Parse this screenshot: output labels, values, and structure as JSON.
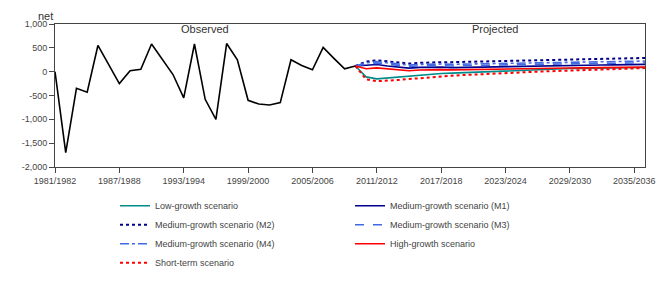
{
  "chart_data": {
    "type": "line",
    "ylabel": "net",
    "xlim": [
      1981,
      2036
    ],
    "ylim": [
      -2000,
      1000
    ],
    "xticks": [
      {
        "value": 1981,
        "label": "1981/1982"
      },
      {
        "value": 1987,
        "label": "1987/1988"
      },
      {
        "value": 1993,
        "label": "1993/1994"
      },
      {
        "value": 1999,
        "label": "1999/2000"
      },
      {
        "value": 2005,
        "label": "2005/2006"
      },
      {
        "value": 2011,
        "label": "2011/2012"
      },
      {
        "value": 2017,
        "label": "2017/2018"
      },
      {
        "value": 2023,
        "label": "2023/2024"
      },
      {
        "value": 2029,
        "label": "2029/2030"
      },
      {
        "value": 2035,
        "label": "2035/2036"
      }
    ],
    "yticks": [
      {
        "value": -2000,
        "label": "-2,000"
      },
      {
        "value": -1500,
        "label": "-1,500"
      },
      {
        "value": -1000,
        "label": "-1,000"
      },
      -500,
      0,
      500,
      {
        "value": 1000,
        "label": "1,000"
      }
    ],
    "grid": false,
    "legend": "bottom",
    "annotations": [
      {
        "text": "Observed",
        "x": 1995,
        "y": 720
      },
      {
        "text": "Projected",
        "x": 2022,
        "y": 720
      }
    ],
    "series": [
      {
        "color": "#000000",
        "line_style": "solid",
        "x": [
          1981,
          1982,
          1983,
          1984,
          1985,
          1986,
          1987,
          1988,
          1989,
          1990,
          1991,
          1992,
          1993,
          1994,
          1995,
          1996,
          1997,
          1998,
          1999,
          2000,
          2001,
          2002,
          2003,
          2004,
          2005,
          2006,
          2007,
          2008,
          2009
        ],
        "values": [
          0,
          -1700,
          -350,
          -430,
          550,
          160,
          -250,
          20,
          50,
          580,
          250,
          -60,
          -550,
          580,
          -580,
          -1000,
          590,
          250,
          -600,
          -680,
          -700,
          -650,
          250,
          130,
          40,
          510,
          280,
          60,
          120
        ]
      },
      {
        "name": "Low-growth scenario",
        "color": "#008B8B",
        "line_style": "solid",
        "x": [
          2009,
          2010,
          2011,
          2012,
          2013,
          2014,
          2015,
          2016,
          2017,
          2018,
          2019,
          2020,
          2021,
          2022,
          2023,
          2024,
          2025,
          2026,
          2027,
          2028,
          2029,
          2030,
          2031,
          2032,
          2033,
          2034,
          2035,
          2036
        ],
        "values": [
          120,
          -110,
          -150,
          -130,
          -110,
          -90,
          -70,
          -55,
          -40,
          -30,
          -20,
          -10,
          0,
          10,
          20,
          30,
          40,
          50,
          55,
          60,
          65,
          70,
          75,
          78,
          80,
          82,
          85,
          88
        ]
      },
      {
        "name": "Medium-growth scenario (M1)",
        "color": "#00008B",
        "line_style": "solid",
        "x": [
          2009,
          2010,
          2011,
          2012,
          2013,
          2014,
          2015,
          2016,
          2017,
          2018,
          2019,
          2020,
          2021,
          2022,
          2023,
          2024,
          2025,
          2026,
          2027,
          2028,
          2029,
          2030,
          2031,
          2032,
          2033,
          2034,
          2035,
          2036
        ],
        "values": [
          120,
          130,
          150,
          120,
          95,
          75,
          90,
          100,
          95,
          85,
          90,
          95,
          100,
          105,
          108,
          110,
          115,
          118,
          122,
          125,
          128,
          132,
          136,
          140,
          143,
          146,
          150,
          153
        ]
      },
      {
        "name": "Medium-growth scenario (M2)",
        "color": "#00008B",
        "line_style": "dotted",
        "x": [
          2009,
          2010,
          2011,
          2012,
          2013,
          2014,
          2015,
          2016,
          2017,
          2018,
          2019,
          2020,
          2021,
          2022,
          2023,
          2024,
          2025,
          2026,
          2027,
          2028,
          2029,
          2030,
          2031,
          2032,
          2033,
          2034,
          2035,
          2036
        ],
        "values": [
          120,
          210,
          240,
          215,
          190,
          170,
          185,
          200,
          200,
          200,
          205,
          212,
          218,
          225,
          230,
          235,
          240,
          245,
          250,
          255,
          260,
          265,
          268,
          272,
          276,
          280,
          284,
          288
        ]
      },
      {
        "name": "Medium-growth scenario (M3)",
        "color": "#4169E1",
        "line_style": "dashed",
        "x": [
          2009,
          2010,
          2011,
          2012,
          2013,
          2014,
          2015,
          2016,
          2017,
          2018,
          2019,
          2020,
          2021,
          2022,
          2023,
          2024,
          2025,
          2026,
          2027,
          2028,
          2029,
          2030,
          2031,
          2032,
          2033,
          2034,
          2035,
          2036
        ],
        "values": [
          120,
          160,
          180,
          155,
          128,
          108,
          122,
          132,
          128,
          120,
          122,
          128,
          132,
          138,
          142,
          146,
          150,
          154,
          157,
          160,
          163,
          166,
          169,
          172,
          175,
          178,
          181,
          184
        ]
      },
      {
        "name": "Medium-growth scenario (M4)",
        "color": "#4169E1",
        "line_style": "dashdot",
        "x": [
          2009,
          2010,
          2011,
          2012,
          2013,
          2014,
          2015,
          2016,
          2017,
          2018,
          2019,
          2020,
          2021,
          2022,
          2023,
          2024,
          2025,
          2026,
          2027,
          2028,
          2029,
          2030,
          2031,
          2032,
          2033,
          2034,
          2035,
          2036
        ],
        "values": [
          120,
          185,
          210,
          185,
          158,
          138,
          152,
          162,
          160,
          155,
          158,
          163,
          168,
          174,
          178,
          182,
          186,
          190,
          194,
          197,
          200,
          204,
          207,
          210,
          214,
          217,
          220,
          223
        ]
      },
      {
        "name": "High-growth scenario",
        "color": "#FF0000",
        "line_style": "solid",
        "x": [
          2009,
          2010,
          2011,
          2012,
          2013,
          2014,
          2015,
          2016,
          2017,
          2018,
          2019,
          2020,
          2021,
          2022,
          2023,
          2024,
          2025,
          2026,
          2027,
          2028,
          2029,
          2030,
          2031,
          2032,
          2033,
          2034,
          2035,
          2036
        ],
        "values": [
          120,
          60,
          80,
          55,
          35,
          20,
          35,
          45,
          42,
          38,
          40,
          45,
          50,
          55,
          58,
          61,
          64,
          67,
          70,
          73,
          76,
          79,
          82,
          85,
          88,
          91,
          94,
          97
        ]
      },
      {
        "name": "Short-term scenario",
        "color": "#FF0000",
        "line_style": "dotted",
        "x": [
          2009,
          2010,
          2011,
          2012,
          2013,
          2014,
          2015,
          2016,
          2017,
          2018,
          2019,
          2020,
          2021,
          2022,
          2023,
          2024,
          2025,
          2026,
          2027,
          2028,
          2029,
          2030,
          2031,
          2032,
          2033,
          2034,
          2035,
          2036
        ],
        "values": [
          120,
          -160,
          -200,
          -195,
          -175,
          -155,
          -135,
          -115,
          -100,
          -85,
          -72,
          -60,
          -50,
          -40,
          -30,
          -20,
          -10,
          0,
          8,
          16,
          25,
          34,
          43,
          50,
          57,
          64,
          70,
          76
        ]
      }
    ]
  }
}
